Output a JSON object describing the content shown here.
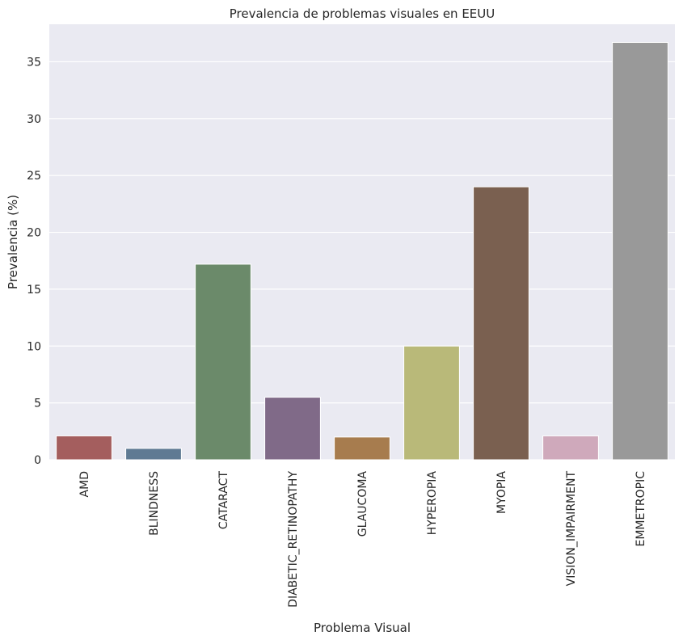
{
  "chart_data": {
    "type": "bar",
    "title": "Prevalencia de problemas visuales en EEUU",
    "xlabel": "Problema Visual",
    "ylabel": "Prevalencia (%)",
    "ylim": [
      0,
      38.3
    ],
    "yticks": [
      0,
      5,
      10,
      15,
      20,
      25,
      30,
      35
    ],
    "grid": true,
    "categories": [
      "AMD",
      "BLINDNESS",
      "CATARACT",
      "DIABETIC_RETINOPATHY",
      "GLAUCOMA",
      "HYPEROPIA",
      "MYOPIA",
      "VISION_IMPAIRMENT",
      "EMMETROPIC"
    ],
    "values": [
      2.1,
      1.0,
      17.2,
      5.5,
      2.0,
      10.0,
      24.0,
      2.1,
      36.7
    ],
    "colors": [
      "#a45e5e",
      "#5f7a93",
      "#6b8a6a",
      "#806a88",
      "#a77c4e",
      "#b9b979",
      "#7a6050",
      "#cfa9bb",
      "#999999"
    ],
    "background": "#eaeaf2"
  }
}
